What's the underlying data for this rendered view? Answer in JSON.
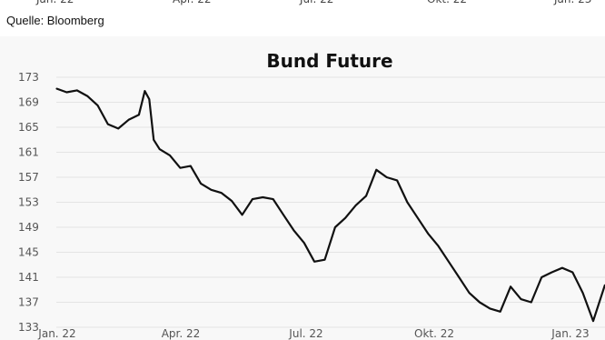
{
  "source": "Quelle: Bloomberg",
  "chart_data": {
    "type": "line",
    "title": "Bund Future",
    "xlabel": "",
    "ylabel": "",
    "x_ticks": [
      "Jan. 22",
      "Apr. 22",
      "Jul. 22",
      "Okt. 22",
      "Jan. 23"
    ],
    "y_ticks": [
      173,
      169,
      165,
      161,
      157,
      153,
      149,
      145,
      141,
      137,
      133
    ],
    "ylim": [
      133,
      173
    ],
    "xlim": [
      "2022-01-03",
      "2023-01-10"
    ],
    "grid": true,
    "series": [
      {
        "color": "#111111",
        "x": [
          "2022-01-03",
          "2022-01-10",
          "2022-01-17",
          "2022-01-24",
          "2022-01-31",
          "2022-02-07",
          "2022-02-14",
          "2022-02-21",
          "2022-02-28",
          "2022-03-04",
          "2022-03-07",
          "2022-03-10",
          "2022-03-14",
          "2022-03-21",
          "2022-03-28",
          "2022-04-04",
          "2022-04-11",
          "2022-04-18",
          "2022-04-25",
          "2022-05-02",
          "2022-05-09",
          "2022-05-16",
          "2022-05-23",
          "2022-05-30",
          "2022-06-06",
          "2022-06-13",
          "2022-06-20",
          "2022-06-27",
          "2022-07-04",
          "2022-07-11",
          "2022-07-18",
          "2022-07-25",
          "2022-08-01",
          "2022-08-08",
          "2022-08-15",
          "2022-08-22",
          "2022-08-29",
          "2022-09-05",
          "2022-09-12",
          "2022-09-19",
          "2022-09-26",
          "2022-10-03",
          "2022-10-10",
          "2022-10-17",
          "2022-10-24",
          "2022-10-31",
          "2022-11-07",
          "2022-11-14",
          "2022-11-21",
          "2022-11-28",
          "2022-12-05",
          "2022-12-12",
          "2022-12-19",
          "2022-12-26",
          "2023-01-02",
          "2023-01-10"
        ],
        "values": [
          171.2,
          170.6,
          170.9,
          170.0,
          168.5,
          165.5,
          164.8,
          166.2,
          167.0,
          170.8,
          169.5,
          163.0,
          161.5,
          160.5,
          158.5,
          158.8,
          156.0,
          155.0,
          154.5,
          153.2,
          151.0,
          153.5,
          153.8,
          153.5,
          151.0,
          148.5,
          146.5,
          143.5,
          143.8,
          149.0,
          150.5,
          152.5,
          154.0,
          158.2,
          157.0,
          156.5,
          153.0,
          150.5,
          148.0,
          146.0,
          143.5,
          141.0,
          138.5,
          137.0,
          136.0,
          135.5,
          139.5,
          137.5,
          137.0,
          141.0,
          141.8,
          142.5,
          141.8,
          138.5,
          134.0,
          139.8
        ]
      }
    ]
  }
}
